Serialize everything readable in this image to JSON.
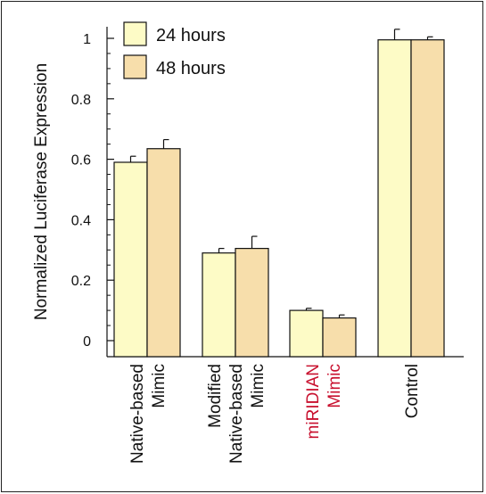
{
  "chart_data": {
    "type": "bar",
    "ylabel": "Normalized Luciferase Expression",
    "ylim": [
      0,
      1.05
    ],
    "yticks": [
      0,
      0.2,
      0.4,
      0.6,
      0.8,
      1
    ],
    "ytick_labels": [
      "0",
      "0.2",
      "0.4",
      "0.6",
      "0.8",
      "1"
    ],
    "categories": [
      {
        "lines": [
          "Native-based",
          "Mimic"
        ],
        "color": "#111111"
      },
      {
        "lines": [
          "Modified",
          "Native-based",
          "Mimic"
        ],
        "color": "#111111"
      },
      {
        "lines": [
          "miRIDIAN",
          "Mimic"
        ],
        "color": "#c8102e"
      },
      {
        "lines": [
          "Control"
        ],
        "color": "#111111"
      }
    ],
    "series": [
      {
        "name": "24 hours",
        "color": "#fdfbc6",
        "values": [
          0.59,
          0.29,
          0.1,
          0.995
        ],
        "errors": [
          0.02,
          0.015,
          0.007,
          0.035
        ]
      },
      {
        "name": "48 hours",
        "color": "#f7deab",
        "values": [
          0.635,
          0.305,
          0.075,
          0.995
        ],
        "errors": [
          0.03,
          0.04,
          0.01,
          0.01
        ]
      }
    ],
    "legend_position": "top-left",
    "grid": false
  }
}
